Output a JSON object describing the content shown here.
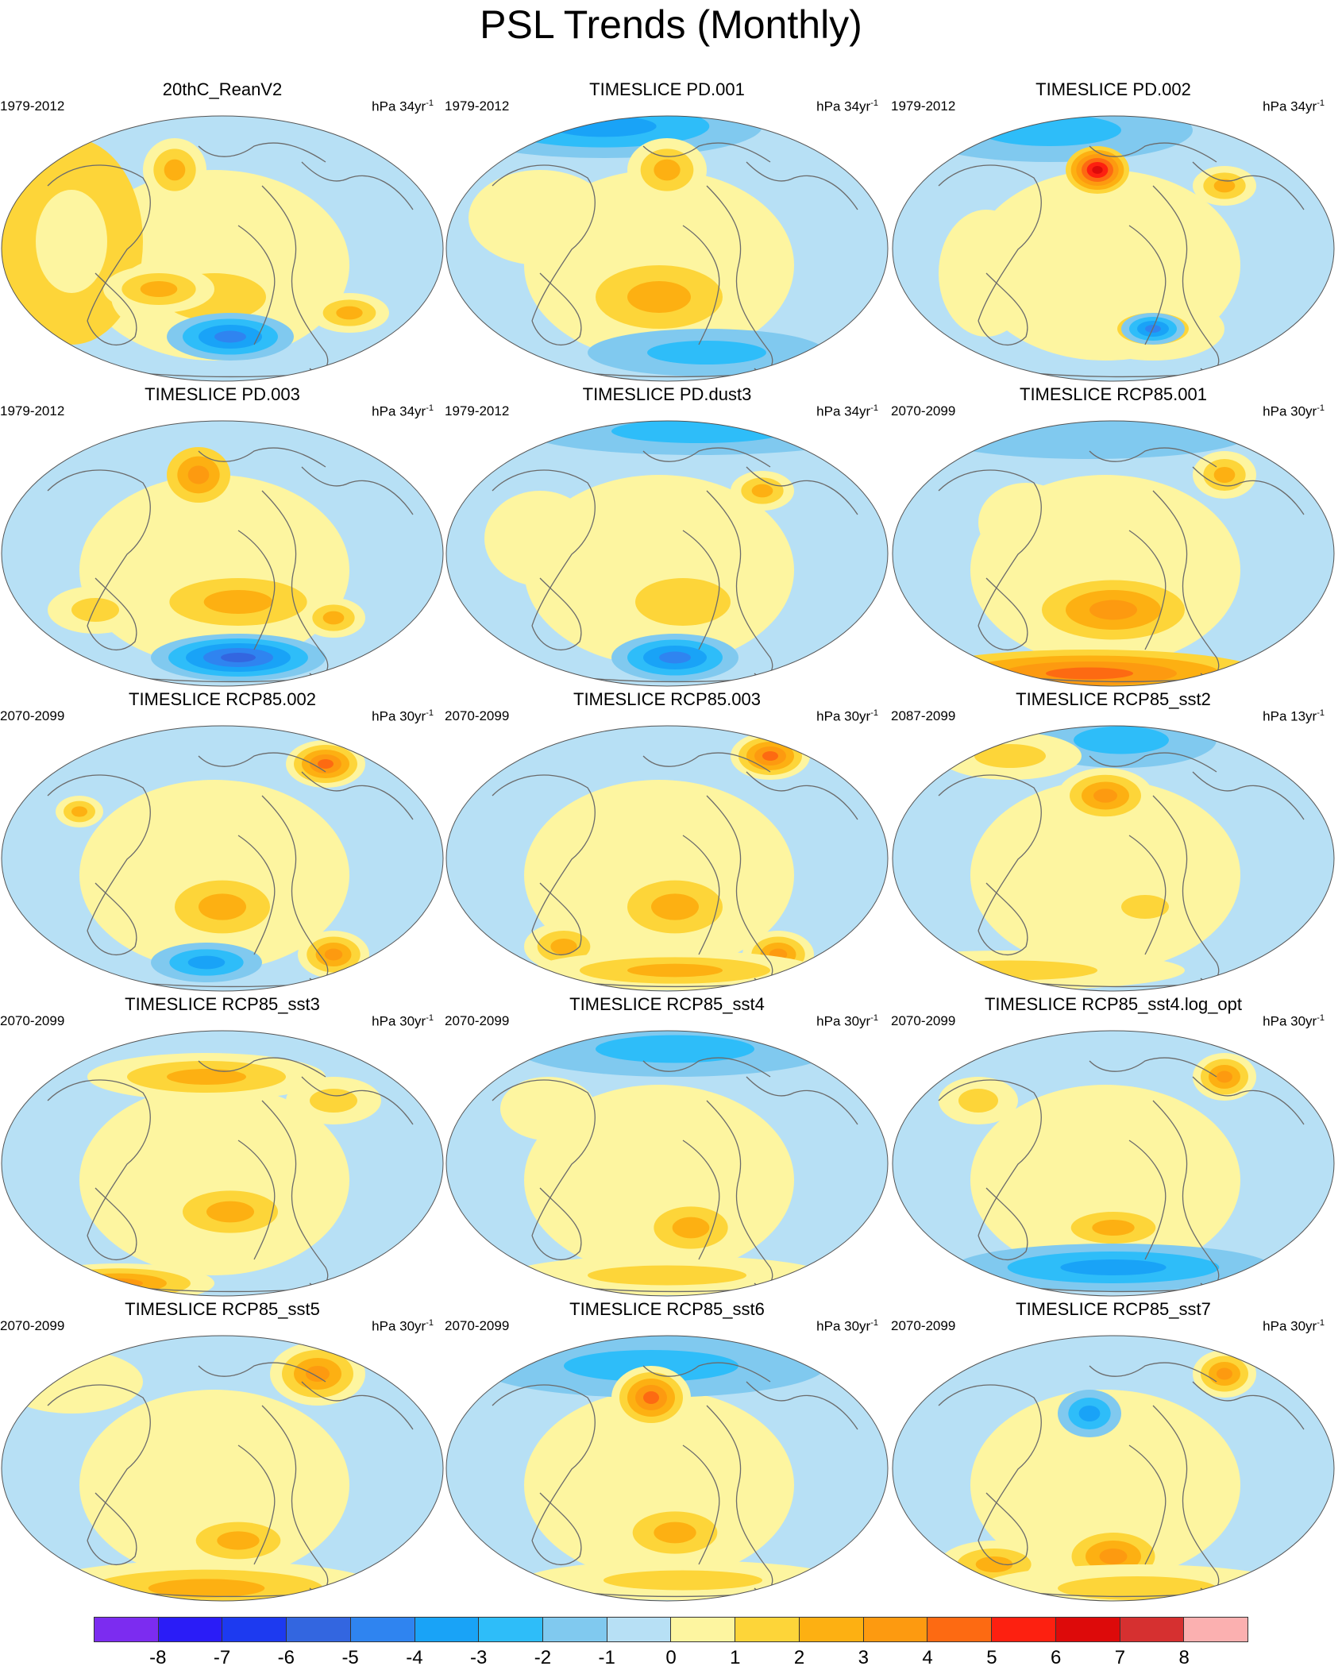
{
  "title": "PSL Trends (Monthly)",
  "colorbar": {
    "labels": [
      "-8",
      "-7",
      "-6",
      "-5",
      "-4",
      "-3",
      "-2",
      "-1",
      "0",
      "1",
      "2",
      "3",
      "4",
      "5",
      "6",
      "7",
      "8"
    ],
    "colors": [
      "#7c2cf0",
      "#2a1cf7",
      "#1d3af0",
      "#3366e0",
      "#2f84f0",
      "#19a3f7",
      "#2ebdf9",
      "#80c9ef",
      "#b7e0f5",
      "#fdf5a0",
      "#fdd539",
      "#fdb012",
      "#fd9a10",
      "#fd6a12",
      "#fd2010",
      "#dd0a0a",
      "#d63030",
      "#fbb0b0"
    ]
  },
  "palette": {
    "map_ocean": "#b7e0f5",
    "map_pos": "#fdf5a0",
    "coast": "#6b6b6b"
  },
  "panels": [
    {
      "title": "20thC_ReanV2",
      "period": "1979-2012",
      "units": "hPa 34yr",
      "exp": "-1"
    },
    {
      "title": "TIMESLICE PD.001",
      "period": "1979-2012",
      "units": "hPa 34yr",
      "exp": "-1"
    },
    {
      "title": "TIMESLICE PD.002",
      "period": "1979-2012",
      "units": "hPa 34yr",
      "exp": "-1"
    },
    {
      "title": "TIMESLICE PD.003",
      "period": "1979-2012",
      "units": "hPa 34yr",
      "exp": "-1"
    },
    {
      "title": "TIMESLICE PD.dust3",
      "period": "1979-2012",
      "units": "hPa 34yr",
      "exp": "-1"
    },
    {
      "title": "TIMESLICE RCP85.001",
      "period": "2070-2099",
      "units": "hPa 30yr",
      "exp": "-1"
    },
    {
      "title": "TIMESLICE RCP85.002",
      "period": "2070-2099",
      "units": "hPa 30yr",
      "exp": "-1"
    },
    {
      "title": "TIMESLICE RCP85.003",
      "period": "2070-2099",
      "units": "hPa 30yr",
      "exp": "-1"
    },
    {
      "title": "TIMESLICE RCP85_sst2",
      "period": "2087-2099",
      "units": "hPa 13yr",
      "exp": "-1"
    },
    {
      "title": "TIMESLICE RCP85_sst3",
      "period": "2070-2099",
      "units": "hPa 30yr",
      "exp": "-1"
    },
    {
      "title": "TIMESLICE RCP85_sst4",
      "period": "2070-2099",
      "units": "hPa 30yr",
      "exp": "-1"
    },
    {
      "title": "TIMESLICE RCP85_sst4.log_opt",
      "period": "2070-2099",
      "units": "hPa 30yr",
      "exp": "-1"
    },
    {
      "title": "TIMESLICE RCP85_sst5",
      "period": "2070-2099",
      "units": "hPa 30yr",
      "exp": "-1"
    },
    {
      "title": "TIMESLICE RCP85_sst6",
      "period": "2070-2099",
      "units": "hPa 30yr",
      "exp": "-1"
    },
    {
      "title": "TIMESLICE RCP85_sst7",
      "period": "2070-2099",
      "units": "hPa 30yr",
      "exp": "-1"
    }
  ]
}
